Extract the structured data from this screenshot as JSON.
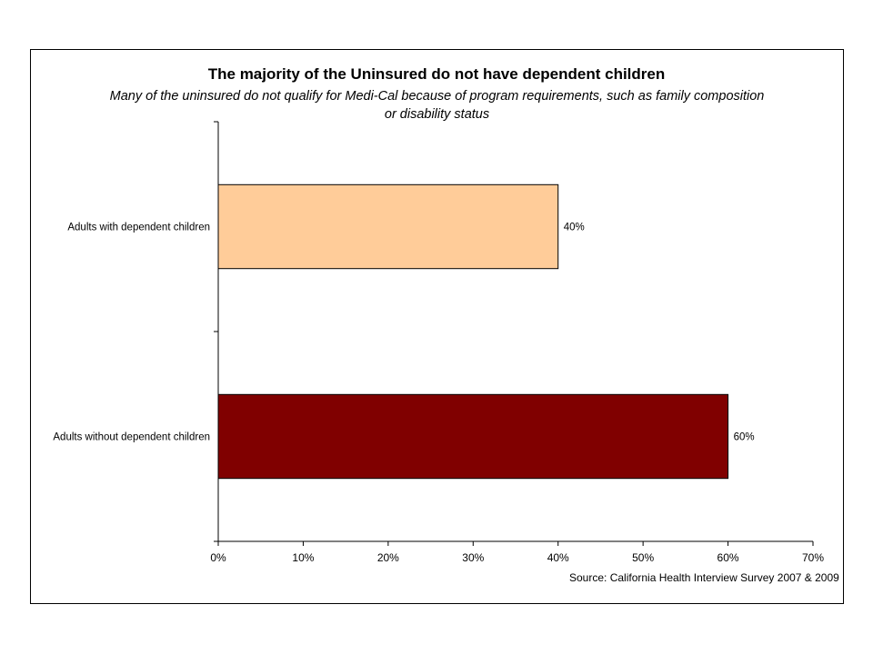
{
  "chart_data": {
    "type": "bar",
    "orientation": "horizontal",
    "title": "The majority of the Uninsured do not have dependent children",
    "subtitle": "Many of the uninsured do not qualify for Medi-Cal because of program requirements, such as family composition or disability status",
    "categories": [
      "Adults with dependent children",
      "Adults without dependent children"
    ],
    "values": [
      40,
      60
    ],
    "data_labels": [
      "40%",
      "60%"
    ],
    "colors": [
      "#FFCC99",
      "#800000"
    ],
    "xlim": [
      0,
      70
    ],
    "xticks": [
      0,
      10,
      20,
      30,
      40,
      50,
      60,
      70
    ],
    "xtick_labels": [
      "0%",
      "10%",
      "20%",
      "30%",
      "40%",
      "50%",
      "60%",
      "70%"
    ],
    "grid": false,
    "legend": "none",
    "xlabel": "",
    "ylabel": ""
  },
  "source": "Source: California Health Interview Survey 2007 & 2009"
}
